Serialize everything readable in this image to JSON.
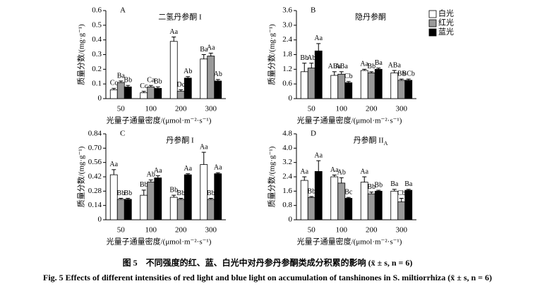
{
  "chart_data": [
    {
      "type": "bar",
      "label": "A",
      "title": "二氢丹参酮 I",
      "y_label": "质量分数/(mg·g⁻¹)",
      "x_label": "光量子通量密度/(μmol·m⁻²·s⁻¹)",
      "categories": [
        "50",
        "100",
        "200",
        "300"
      ],
      "ylim": [
        0,
        0.6
      ],
      "yticks": [
        0,
        0.1,
        0.2,
        0.3,
        0.4,
        0.5,
        0.6
      ],
      "series": [
        {
          "color": "#ffffff",
          "values": [
            0.06,
            0.04,
            0.39,
            0.27
          ],
          "errors": [
            0.01,
            0.01,
            0.03,
            0.03
          ],
          "labels": [
            "Cc",
            "Cc",
            "Aa",
            "Ba"
          ]
        },
        {
          "color": "#999999",
          "values": [
            0.11,
            0.08,
            0.05,
            0.29
          ],
          "errors": [
            0.01,
            0.01,
            0.01,
            0.02
          ],
          "labels": [
            "Ba",
            "Ca",
            "Dc",
            "Aa"
          ]
        },
        {
          "color": "#000000",
          "values": [
            0.08,
            0.07,
            0.14,
            0.12
          ],
          "errors": [
            0.01,
            0.01,
            0.01,
            0.01
          ],
          "labels": [
            "Bb",
            "Bb",
            "Ab",
            "Ab"
          ]
        }
      ]
    },
    {
      "type": "bar",
      "label": "B",
      "title": "隐丹参酮",
      "y_label": "质量分数/(mg·g⁻¹)",
      "x_label": "光量子通量密度/(μmol·m⁻²·s⁻¹)",
      "categories": [
        "50",
        "100",
        "200",
        "300"
      ],
      "ylim": [
        0,
        3.6
      ],
      "yticks": [
        0,
        0.6,
        1.2,
        1.8,
        2.4,
        {
          "value": 3,
          "label": "3.0"
        },
        3.6
      ],
      "legend": "upper right",
      "series": [
        {
          "name": "白光",
          "color": "#ffffff",
          "values": [
            1.1,
            0.95,
            1.15,
            1.05
          ],
          "errors": [
            0.35,
            0.15,
            0.05,
            0.1
          ],
          "labels": [
            "Bb",
            "ABa",
            "Aa",
            "ABa"
          ]
        },
        {
          "name": "红光",
          "color": "#999999",
          "values": [
            1.25,
            1.0,
            1.05,
            0.75
          ],
          "errors": [
            0.2,
            0.1,
            0.05,
            0.05
          ],
          "labels": [
            "Ab",
            "ABa",
            "Bb",
            "Bb"
          ]
        },
        {
          "name": "蓝光",
          "color": "#000000",
          "values": [
            1.95,
            0.65,
            1.2,
            0.75
          ],
          "errors": [
            0.3,
            0.05,
            0.05,
            0.05
          ],
          "labels": [
            "Aa",
            "Cb",
            "Ba",
            "BCb"
          ]
        }
      ]
    },
    {
      "type": "bar",
      "label": "C",
      "title": "丹参酮 I",
      "y_label": "质量分数/(mg·g⁻¹)",
      "x_label": "光量子通量密度/(μmol·m⁻²·s⁻¹)",
      "categories": [
        "50",
        "100",
        "200",
        "300"
      ],
      "ylim": [
        0,
        0.84
      ],
      "yticks": [
        0,
        0.14,
        0.28,
        0.42,
        0.56,
        {
          "value": 0.7,
          "label": "0.70"
        },
        0.84
      ],
      "series": [
        {
          "color": "#ffffff",
          "values": [
            0.44,
            0.24,
            0.22,
            0.54
          ],
          "errors": [
            0.05,
            0.05,
            0.02,
            0.12
          ],
          "labels": [
            "Aa",
            "Bb",
            "Bb",
            "Aa"
          ]
        },
        {
          "color": "#999999",
          "values": [
            0.2,
            0.37,
            0.2,
            0.2
          ],
          "errors": [
            0.01,
            0.02,
            0.01,
            0.01
          ],
          "labels": [
            "Bb",
            "Ab",
            "Bb",
            "Bb"
          ]
        },
        {
          "color": "#000000",
          "values": [
            0.2,
            0.41,
            0.44,
            0.45
          ],
          "errors": [
            0.01,
            0.02,
            0.01,
            0.01
          ],
          "labels": [
            "Bb",
            "Aa",
            "Aa",
            "Aa"
          ]
        }
      ]
    },
    {
      "type": "bar",
      "label": "D",
      "title": "丹参酮 II",
      "title_subscript": "A",
      "y_label": "质量分数/(mg·g⁻¹)",
      "x_label": "光量子通量密度/(μmol·m⁻²·s⁻¹)",
      "categories": [
        "50",
        "100",
        "200",
        "300"
      ],
      "ylim": [
        0,
        4.8
      ],
      "yticks": [
        0,
        0.8,
        1.6,
        2.4,
        3.2,
        {
          "value": 4,
          "label": "4.0"
        },
        4.8
      ],
      "series": [
        {
          "color": "#ffffff",
          "values": [
            2.2,
            2.4,
            2.1,
            1.6
          ],
          "errors": [
            0.2,
            0.1,
            0.3,
            0.1
          ],
          "labels": [
            "Aa",
            "Aa",
            "Aa",
            "Ba"
          ]
        },
        {
          "color": "#999999",
          "values": [
            1.25,
            2.05,
            1.45,
            1.0
          ],
          "errors": [
            0.05,
            0.3,
            0.1,
            0.2
          ],
          "labels": [
            "Bb",
            "Ab",
            "Bb",
            "Cb"
          ]
        },
        {
          "color": "#000000",
          "values": [
            2.7,
            1.2,
            1.6,
            1.65
          ],
          "errors": [
            0.6,
            0.05,
            0.05,
            0.05
          ],
          "labels": [
            "Aa",
            "Bc",
            "Bb",
            "Ba"
          ]
        }
      ]
    }
  ],
  "caption_zh": "图 5　不同强度的红、蓝、白光中对丹参丹参酮类成分积累的影响 (x̄ ± s, n = 6)",
  "caption_en": "Fig. 5   Effects of different intensities of red light and blue light on accumulation of tanshinones in S. miltiorrhiza (x̄ ± s, n = 6)"
}
